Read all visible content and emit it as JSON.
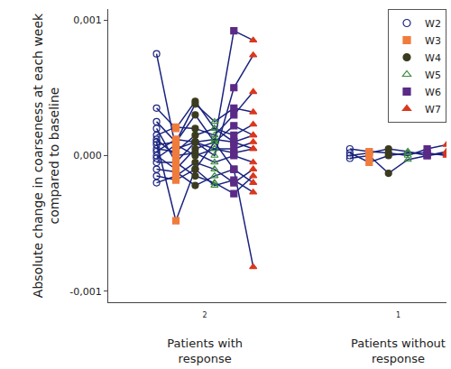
{
  "chart_data": {
    "type": "line",
    "y_label": "Absolute change in coarseness at each week compared to baseline",
    "categories": [
      "Patients with response",
      "Patients without response"
    ],
    "category_codes": [
      "2",
      "1"
    ],
    "xlim": [
      -0.5,
      1.25
    ],
    "ylim": [
      -0.00108,
      0.00108
    ],
    "yticks": [
      {
        "value": -0.001,
        "label": "-0,001"
      },
      {
        "value": 0,
        "label": "0,000"
      },
      {
        "value": 0.001,
        "label": "0,001"
      }
    ],
    "grid": false,
    "legend": "top right",
    "color": "#1a237e",
    "series": [
      {
        "name": "W2",
        "color": "#1a237e",
        "marker": "circle-open"
      },
      {
        "name": "W3",
        "color": "#f07c3c",
        "marker": "square"
      },
      {
        "name": "W4",
        "color": "#3b3b1f",
        "marker": "circle"
      },
      {
        "name": "W5",
        "color": "#3a8a3a",
        "marker": "triangle-up-open"
      },
      {
        "name": "W6",
        "color": "#5b2a86",
        "marker": "square"
      },
      {
        "name": "W7",
        "color": "#d9381e",
        "marker": "triangle-up"
      }
    ],
    "patients": [
      [
        [
          0.00075,
          5e-05,
          0.0001,
          5e-05,
          2e-05,
          5e-05
        ],
        [
          0.00035,
          0.0002,
          0.0004,
          0.0002,
          0.0001,
          0.00015
        ],
        [
          0.00025,
          0.0001,
          0.0003,
          0.0001,
          0.00092,
          0.00085
        ],
        [
          0.0002,
          -5e-05,
          0.0001,
          0.0,
          0.0005,
          0.00074
        ],
        [
          0.00015,
          0.00021,
          0.0002,
          0.00015,
          0.0003,
          0.00047
        ],
        [
          0.0001,
          -0.00048,
          -0.0001,
          0.0001,
          -0.0001,
          -0.00082
        ],
        [
          8e-05,
          0.0001,
          0.00038,
          0.00025,
          0.00035,
          0.00032
        ],
        [
          5e-05,
          3e-05,
          0.00015,
          0.0002,
          0.00015,
          0.00023
        ],
        [
          0.0,
          -0.0001,
          5e-05,
          0.0001,
          0.00022,
          0.00015
        ],
        [
          -2e-05,
          8e-05,
          0.0,
          5e-05,
          5e-05,
          0.0001
        ],
        [
          -5e-05,
          -5e-05,
          -0.00015,
          -0.0002,
          -0.00028,
          -0.00015
        ],
        [
          -0.0001,
          -0.00012,
          -0.00022,
          -0.00015,
          -0.0001,
          -0.0002
        ],
        [
          -0.00015,
          -0.00018,
          -0.0001,
          -0.00022,
          -0.00018,
          -0.00027
        ],
        [
          -0.0002,
          -0.00015,
          -5e-05,
          -0.0001,
          -0.0002,
          -0.0001
        ],
        [
          0.00012,
          0.0,
          2e-05,
          -5e-05,
          0.0,
          -5e-05
        ],
        [
          3e-05,
          0.00012,
          0.0001,
          0.00012,
          0.0001,
          5e-05
        ]
      ],
      [
        [
          5e-05,
          3e-05,
          2e-05,
          0.0,
          5e-05,
          8e-05
        ],
        [
          0.0,
          2e-05,
          5e-05,
          3e-05,
          0.0,
          2e-05
        ],
        [
          -2e-05,
          0.0,
          -0.00013,
          -3e-05,
          0.0,
          3e-05
        ],
        [
          2e-05,
          -5e-05,
          0.0,
          2e-05,
          2e-05,
          0.0
        ]
      ]
    ]
  }
}
